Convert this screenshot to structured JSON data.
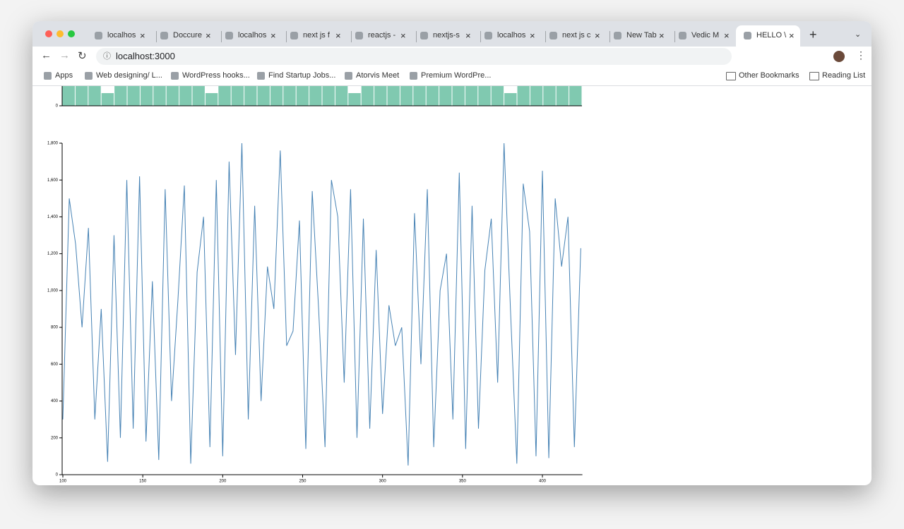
{
  "browser": {
    "tabs": [
      "localhos",
      "Doccure",
      "localhos",
      "next js f",
      "reactjs -",
      "nextjs-s",
      "localhos",
      "next js c",
      "New Tab",
      "Vedic M",
      "HELLO \\"
    ],
    "url": "localhost:3000",
    "bookmarks": [
      "Apps",
      "Web designing/ L...",
      "WordPress hooks...",
      "Find Startup Jobs...",
      "Atorvis Meet",
      "Premium WordPre..."
    ],
    "right_bookmarks": [
      "Other Bookmarks",
      "Reading List"
    ]
  },
  "chart_data": [
    {
      "type": "bar",
      "color": "#80c9b0",
      "categories": [
        null,
        null,
        null,
        null,
        null,
        null,
        null,
        null,
        null,
        null,
        null,
        null,
        null,
        null,
        null,
        null,
        null,
        null,
        null,
        null,
        null,
        null,
        null,
        null,
        null,
        null,
        null,
        null,
        null,
        null,
        null,
        null,
        null,
        null,
        null,
        null,
        null,
        null,
        null,
        null
      ],
      "values": [
        60,
        60,
        60,
        6,
        60,
        60,
        60,
        60,
        60,
        60,
        60,
        6,
        60,
        60,
        60,
        60,
        60,
        60,
        60,
        60,
        60,
        60,
        6,
        60,
        60,
        60,
        60,
        60,
        60,
        60,
        60,
        60,
        60,
        60,
        6,
        60,
        60,
        60,
        60,
        60
      ],
      "ylim": [
        0,
        100
      ],
      "yticks": [
        0
      ]
    },
    {
      "type": "line",
      "color": "#4682b4",
      "x": [
        100,
        104,
        108,
        112,
        116,
        120,
        124,
        128,
        132,
        136,
        140,
        144,
        148,
        152,
        156,
        160,
        164,
        168,
        172,
        176,
        180,
        184,
        188,
        192,
        196,
        200,
        204,
        208,
        212,
        216,
        220,
        224,
        228,
        232,
        236,
        240,
        244,
        248,
        252,
        256,
        260,
        264,
        268,
        272,
        276,
        280,
        284,
        288,
        292,
        296,
        300,
        304,
        308,
        312,
        316,
        320,
        324,
        328,
        332,
        336,
        340,
        344,
        348,
        352,
        356,
        360,
        364,
        368,
        372,
        376,
        380,
        384,
        388,
        392,
        396,
        400,
        404,
        408,
        412,
        416,
        420,
        424
      ],
      "values": [
        300,
        1500,
        1250,
        800,
        1340,
        300,
        900,
        70,
        1300,
        200,
        1600,
        250,
        1620,
        180,
        1050,
        80,
        1550,
        400,
        950,
        1570,
        60,
        1100,
        1400,
        150,
        1600,
        100,
        1700,
        650,
        1800,
        300,
        1460,
        400,
        1130,
        900,
        1760,
        700,
        780,
        1380,
        140,
        1540,
        900,
        150,
        1600,
        1400,
        500,
        1550,
        200,
        1390,
        250,
        1220,
        330,
        920,
        700,
        800,
        50,
        1420,
        600,
        1550,
        150,
        1000,
        1200,
        300,
        1640,
        140,
        1460,
        250,
        1110,
        1390,
        500,
        1800,
        900,
        60,
        1580,
        1320,
        100,
        1650,
        90,
        1500,
        1130,
        1400,
        150,
        1230
      ],
      "xlim": [
        100,
        425
      ],
      "xticks": [
        100,
        150,
        200,
        250,
        300,
        350,
        400
      ],
      "ylim": [
        0,
        1800
      ],
      "yticks": [
        0,
        200,
        400,
        600,
        800,
        {
          "value": 1000,
          "label": "1,000"
        },
        {
          "value": 1200,
          "label": "1,200"
        },
        {
          "value": 1400,
          "label": "1,400"
        },
        {
          "value": 1600,
          "label": "1,600"
        },
        {
          "value": 1800,
          "label": "1,800"
        }
      ]
    }
  ]
}
